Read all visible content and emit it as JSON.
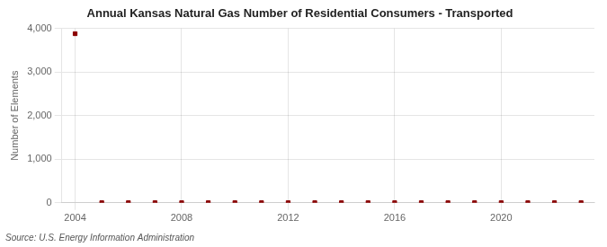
{
  "chart_data": {
    "type": "scatter",
    "title": "Annual Kansas Natural Gas Number of Residential Consumers - Transported",
    "y_label": "Number of Elements",
    "annotation": "Source: U.S. Energy Information Administration",
    "x": [
      2004,
      2005,
      2006,
      2007,
      2008,
      2009,
      2010,
      2011,
      2012,
      2013,
      2014,
      2015,
      2016,
      2017,
      2018,
      2019,
      2020,
      2021,
      2022,
      2023
    ],
    "values": [
      3878,
      3,
      3,
      3,
      3,
      3,
      3,
      3,
      3,
      3,
      3,
      3,
      3,
      3,
      3,
      3,
      3,
      3,
      3,
      3
    ],
    "color": "#8b0000",
    "marker": "square",
    "line_style": "none",
    "xlim": [
      2003.5,
      2023.5
    ],
    "xticks": [
      2004,
      2008,
      2012,
      2016,
      2020
    ],
    "ylim": [
      0,
      4000
    ],
    "yticks": [
      0,
      {
        "value": 1000,
        "label": "1,000"
      },
      {
        "value": 2000,
        "label": "2,000"
      },
      {
        "value": 3000,
        "label": "3,000"
      },
      {
        "value": 4000,
        "label": "4,000"
      }
    ],
    "grid": true
  }
}
